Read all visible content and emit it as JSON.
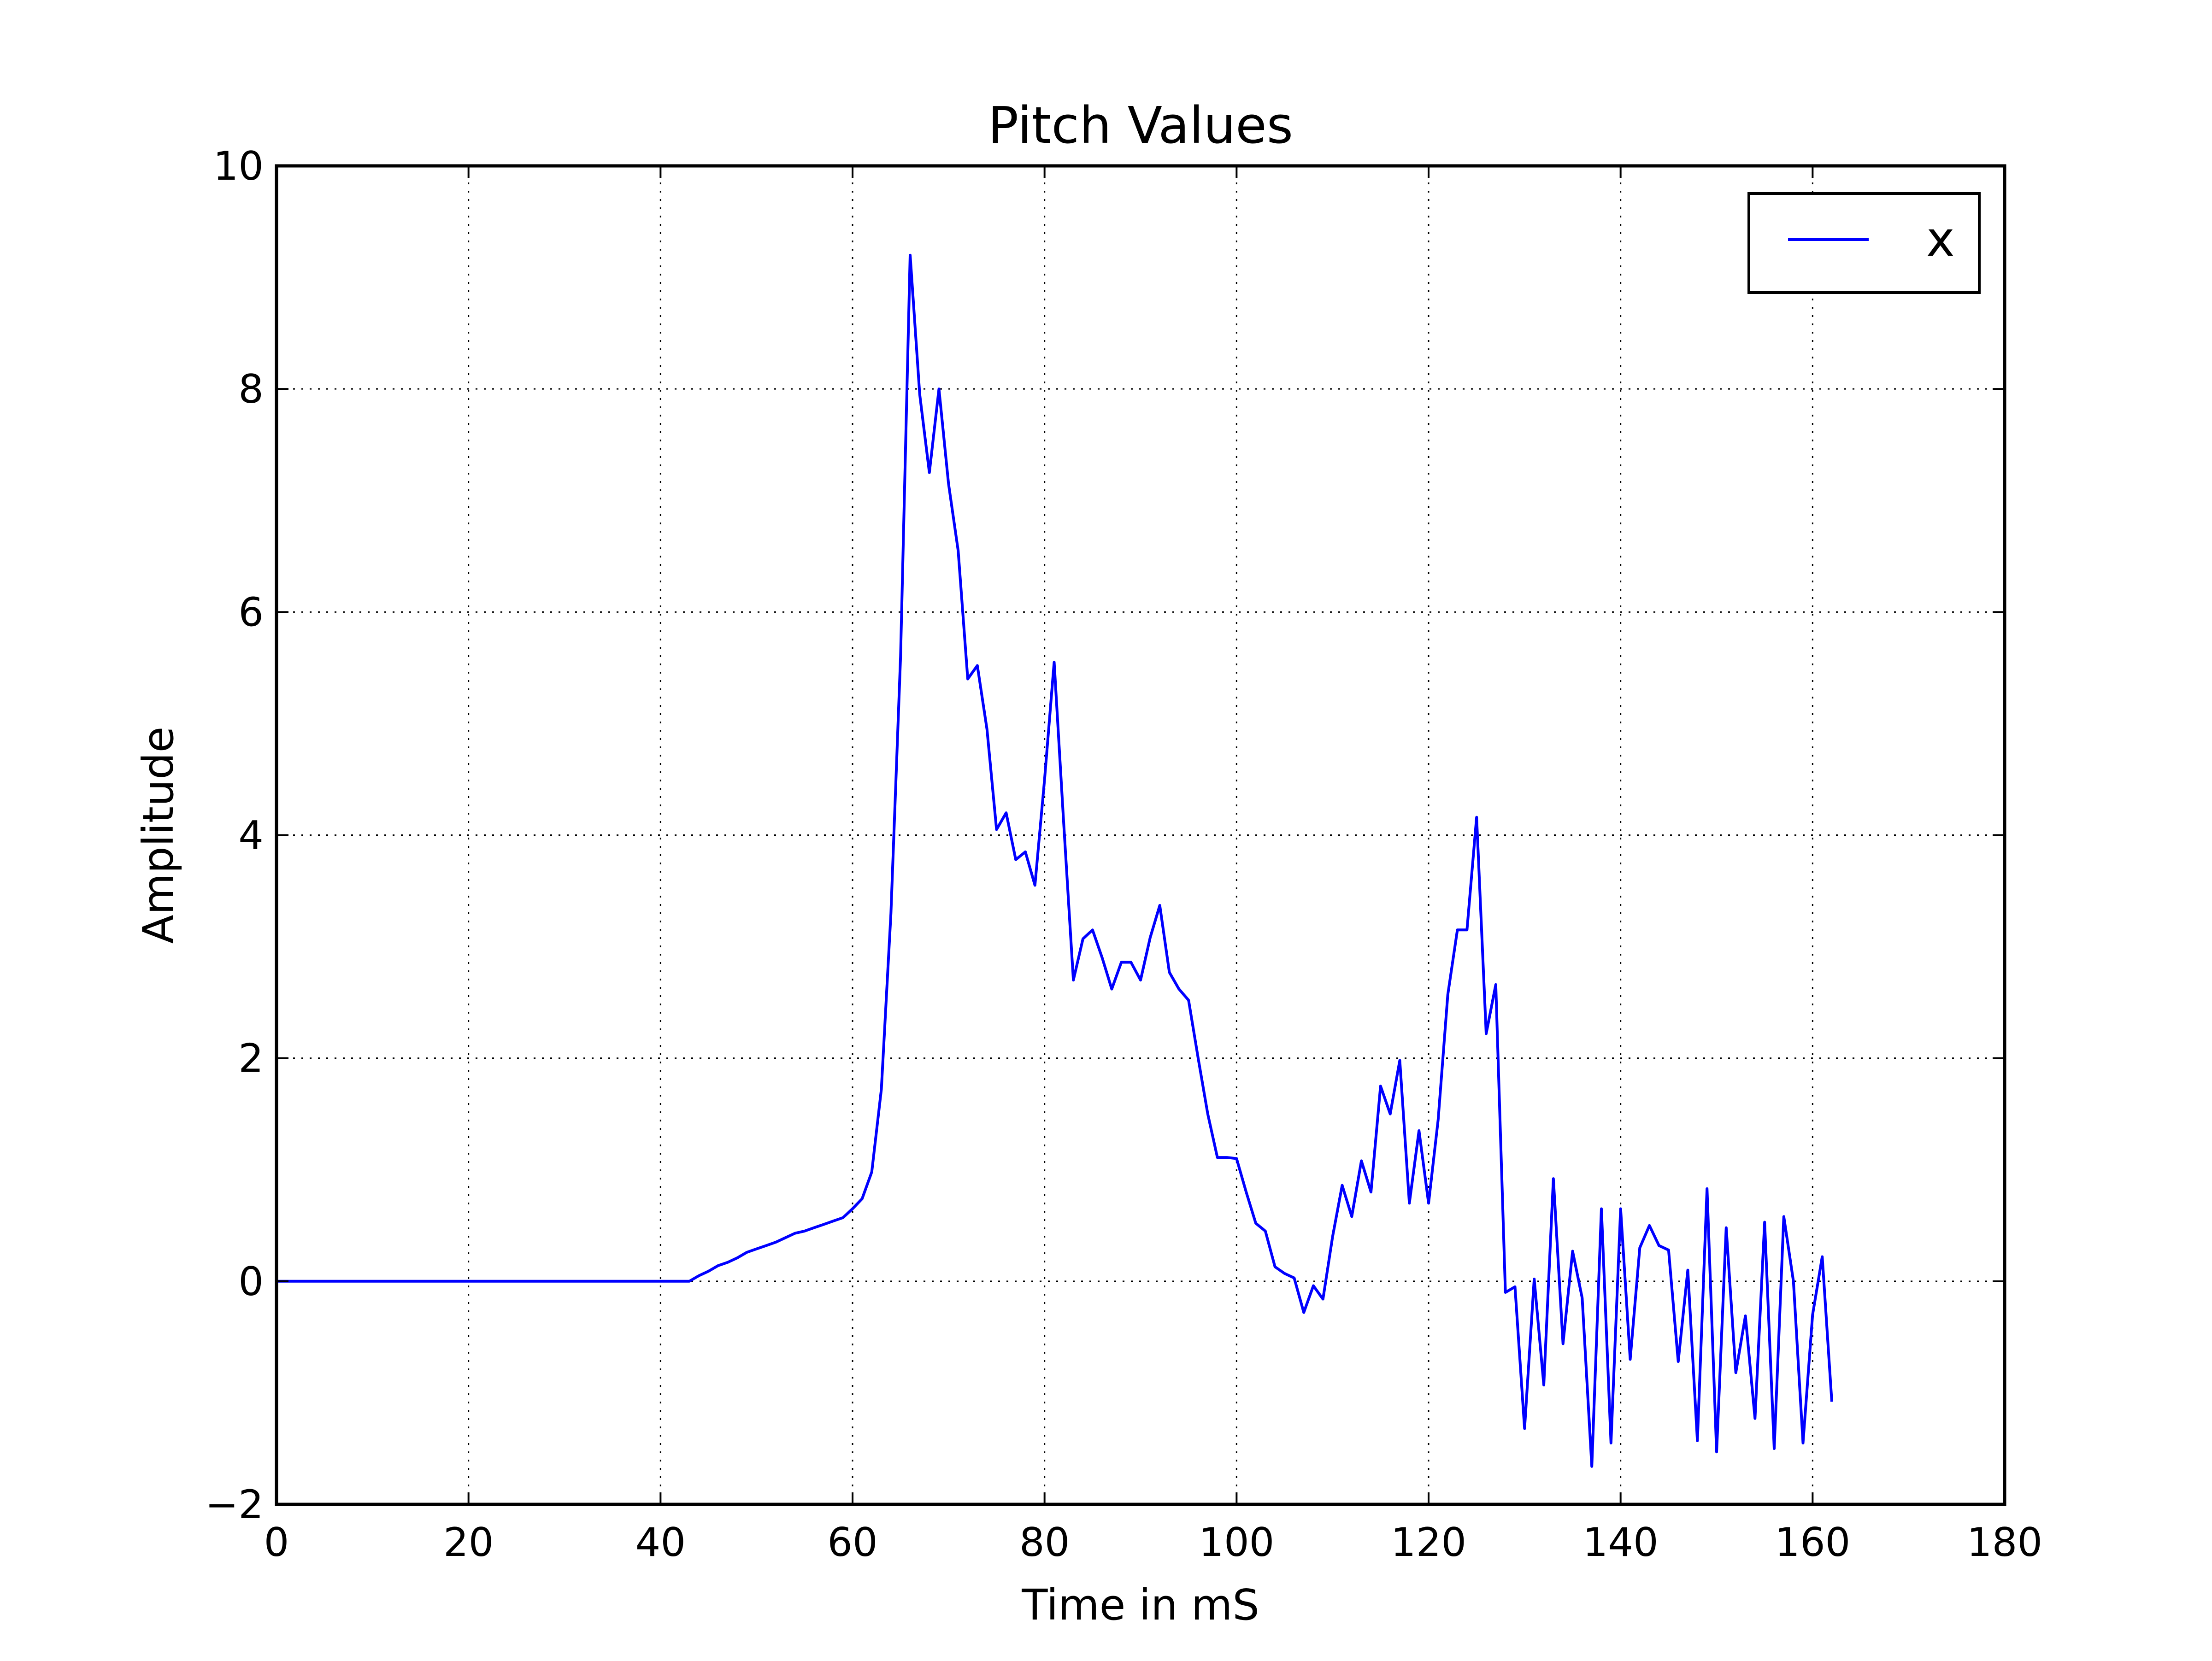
{
  "chart_data": {
    "type": "line",
    "title": "Pitch Values",
    "xlabel": "Time in mS",
    "ylabel": "Amplitude",
    "xlim": [
      0,
      180
    ],
    "ylim": [
      -2,
      10
    ],
    "xticks": [
      0,
      20,
      40,
      60,
      80,
      100,
      120,
      140,
      160,
      180
    ],
    "xtick_labels": [
      "0",
      "20",
      "40",
      "60",
      "80",
      "100",
      "120",
      "140",
      "160",
      "180"
    ],
    "yticks": [
      -2,
      0,
      2,
      4,
      6,
      8,
      10
    ],
    "ytick_labels": [
      "−2",
      "0",
      "2",
      "4",
      "6",
      "8",
      "10"
    ],
    "grid": true,
    "legend": {
      "position": "top-right"
    },
    "series": [
      {
        "name": "x",
        "color": "#0000ff",
        "x": [
          0,
          1,
          2,
          3,
          4,
          5,
          6,
          7,
          8,
          9,
          10,
          11,
          12,
          13,
          14,
          15,
          16,
          17,
          18,
          19,
          20,
          21,
          22,
          23,
          24,
          25,
          26,
          27,
          28,
          29,
          30,
          31,
          32,
          33,
          34,
          35,
          36,
          37,
          38,
          39,
          40,
          41,
          42,
          43,
          44,
          45,
          46,
          47,
          48,
          49,
          50,
          51,
          52,
          53,
          54,
          55,
          56,
          57,
          58,
          59,
          60,
          61,
          62,
          63,
          64,
          65,
          66,
          67,
          68,
          69,
          70,
          71,
          72,
          73,
          74,
          75,
          76,
          77,
          78,
          79,
          80,
          81,
          82,
          83,
          84,
          85,
          86,
          87,
          88,
          89,
          90,
          91,
          92,
          93,
          94,
          95,
          96,
          97,
          98,
          99,
          100,
          101,
          102,
          103,
          104,
          105,
          106,
          107,
          108,
          109,
          110,
          111,
          112,
          113,
          114,
          115,
          116,
          117,
          118,
          119,
          120,
          121,
          122,
          123,
          124,
          125,
          126,
          127,
          128,
          129,
          130,
          131,
          132,
          133,
          134,
          135,
          136,
          137,
          138,
          139,
          140,
          141,
          142,
          143,
          144,
          145,
          146,
          147,
          148,
          149,
          150,
          151,
          152,
          153,
          154,
          155,
          156,
          157,
          158,
          159,
          160,
          161,
          162
        ],
        "y": [
          0,
          0,
          0,
          0,
          0,
          0,
          0,
          0,
          0,
          0,
          0,
          0,
          0,
          0,
          0,
          0,
          0,
          0,
          0,
          0,
          0,
          0,
          0,
          0,
          0,
          0,
          0,
          0,
          0,
          0,
          0,
          0,
          0,
          0,
          0,
          0,
          0,
          0,
          0,
          0,
          0,
          0,
          0,
          0,
          0.05,
          0.09,
          0.14,
          0.17,
          0.21,
          0.26,
          0.29,
          0.32,
          0.35,
          0.39,
          0.43,
          0.45,
          0.48,
          0.51,
          0.54,
          0.57,
          0.65,
          0.74,
          0.98,
          1.72,
          3.3,
          5.6,
          9.2,
          7.95,
          7.25,
          8.0,
          7.15,
          6.55,
          5.4,
          5.52,
          4.95,
          4.05,
          4.2,
          3.78,
          3.85,
          3.55,
          4.5,
          5.55,
          4.1,
          2.7,
          3.07,
          3.15,
          2.9,
          2.62,
          2.86,
          2.86,
          2.7,
          3.08,
          3.37,
          2.77,
          2.62,
          2.52,
          2.0,
          1.5,
          1.11,
          1.11,
          1.1,
          0.8,
          0.52,
          0.45,
          0.13,
          0.07,
          0.03,
          -0.28,
          -0.04,
          -0.16,
          0.4,
          0.86,
          0.58,
          1.08,
          0.8,
          1.75,
          1.5,
          1.98,
          0.7,
          1.35,
          0.7,
          1.45,
          2.57,
          3.15,
          3.15,
          4.16,
          2.22,
          2.66,
          -0.1,
          -0.05,
          -1.32,
          0.02,
          -0.93,
          0.92,
          -0.56,
          0.27,
          -0.15,
          -1.66,
          0.65,
          -1.45,
          0.65,
          -0.7,
          0.3,
          0.5,
          0.32,
          0.28,
          -0.72,
          0.1,
          -1.43,
          0.83,
          -1.53,
          0.48,
          -0.82,
          -0.31,
          -1.23,
          0.53,
          -1.5,
          0.58,
          0.0,
          -1.45,
          -0.3,
          0.22,
          -1.08
        ]
      }
    ]
  }
}
